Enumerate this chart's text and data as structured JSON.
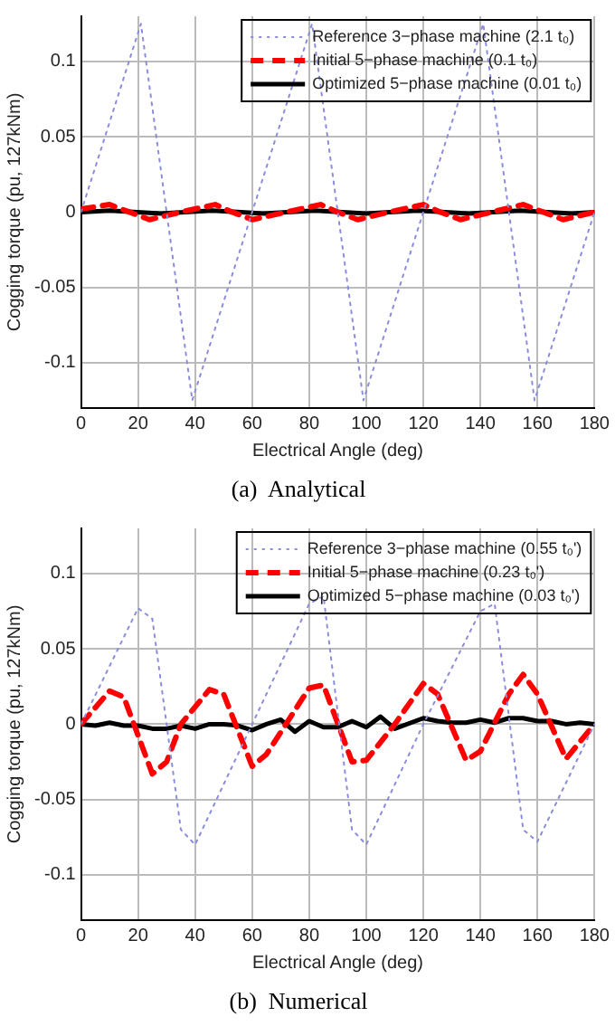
{
  "chart_data": [
    {
      "type": "line",
      "title": "(a)  Analytical",
      "xlabel": "Electrical Angle (deg)",
      "ylabel": "Cogging torque (pu, 127kNm)",
      "xlim": [
        0,
        180
      ],
      "xticks": [
        0,
        20,
        40,
        60,
        80,
        100,
        120,
        140,
        160,
        180
      ],
      "ylim": [
        -0.13,
        0.13
      ],
      "yticks": [
        -0.1,
        -0.05,
        0,
        0.05,
        0.1
      ],
      "grid": true,
      "legend": "top right",
      "marker": "none",
      "series": [
        {
          "name": "Reference 3−phase machine (2.1 t₀)",
          "color": "#8c8cdc",
          "line_style": "dotted",
          "x": [
            0,
            21,
            39,
            81,
            99,
            141,
            159,
            180
          ],
          "values": [
            0,
            0.125,
            -0.125,
            0.125,
            -0.125,
            0.125,
            -0.125,
            0
          ]
        },
        {
          "name": "Initial 5−phase machine (0.1 t₀)",
          "color": "#ff0000",
          "line_style": "dashed",
          "x": [
            0,
            10,
            17,
            24,
            35,
            47,
            53,
            60,
            72,
            84,
            90,
            97,
            108,
            120,
            126,
            133,
            144,
            155,
            162,
            169,
            180
          ],
          "values": [
            0.002,
            0.005,
            0,
            -0.005,
            0,
            0.005,
            0,
            -0.005,
            0,
            0.005,
            0,
            -0.005,
            0,
            0.005,
            0,
            -0.005,
            0,
            0.005,
            0,
            -0.005,
            0
          ]
        },
        {
          "name": "Optimized 5−phase machine (0.01 t₀)",
          "color": "#000000",
          "line_style": "solid",
          "x": [
            0,
            10,
            28,
            46,
            64,
            82,
            100,
            118,
            136,
            154,
            172,
            180
          ],
          "values": [
            0,
            0.001,
            -0.001,
            0.001,
            -0.001,
            0.001,
            -0.001,
            0.001,
            -0.001,
            0.001,
            -0.001,
            0
          ]
        }
      ]
    },
    {
      "type": "line",
      "title": "(b)  Numerical",
      "xlabel": "Electrical Angle (deg)",
      "ylabel": "Cogging torque (pu, 127kNm)",
      "xlim": [
        0,
        180
      ],
      "xticks": [
        0,
        20,
        40,
        60,
        80,
        100,
        120,
        140,
        160,
        180
      ],
      "ylim": [
        -0.13,
        0.13
      ],
      "yticks": [
        -0.1,
        -0.05,
        0,
        0.05,
        0.1
      ],
      "grid": true,
      "legend": "top right",
      "marker": "none",
      "series": [
        {
          "name": "Reference 3−phase machine (0.55 t₀')",
          "color": "#8c8cdc",
          "line_style": "dotted",
          "x": [
            0,
            20,
            25,
            35,
            40,
            60,
            80,
            85,
            95,
            100,
            120,
            140,
            145,
            155,
            160,
            180
          ],
          "values": [
            0,
            0.077,
            0.07,
            -0.07,
            -0.08,
            0,
            0.08,
            0.085,
            -0.07,
            -0.08,
            0,
            0.075,
            0.08,
            -0.07,
            -0.078,
            0
          ]
        },
        {
          "name": "Initial 5−phase machine (0.23 t₀')",
          "color": "#ff0000",
          "line_style": "dashed",
          "x": [
            0,
            10,
            15,
            25,
            30,
            35,
            45,
            50,
            60,
            65,
            80,
            85,
            95,
            100,
            110,
            120,
            125,
            135,
            140,
            150,
            155,
            160,
            170,
            180
          ],
          "values": [
            0,
            0.022,
            0.018,
            -0.033,
            -0.025,
            0,
            0.023,
            0.02,
            -0.028,
            -0.02,
            0.024,
            0.026,
            -0.025,
            -0.024,
            0,
            0.027,
            0.02,
            -0.024,
            -0.018,
            0.02,
            0.033,
            0.02,
            -0.023,
            0
          ]
        },
        {
          "name": "Optimized 5−phase machine (0.03 t₀')",
          "color": "#000000",
          "line_style": "solid",
          "x": [
            0,
            5,
            10,
            15,
            20,
            25,
            30,
            35,
            40,
            45,
            50,
            55,
            60,
            65,
            70,
            75,
            80,
            85,
            90,
            95,
            100,
            105,
            110,
            120,
            125,
            130,
            135,
            140,
            145,
            150,
            155,
            160,
            165,
            170,
            175,
            180
          ],
          "values": [
            0,
            -0.001,
            0.001,
            -0.001,
            -0.001,
            -0.003,
            -0.003,
            -0.001,
            -0.003,
            0,
            0,
            -0.001,
            -0.004,
            0,
            0.003,
            -0.005,
            0.002,
            -0.002,
            -0.002,
            0.002,
            -0.002,
            0.005,
            -0.003,
            0.004,
            0.002,
            0.001,
            0.001,
            0.003,
            0.001,
            0.004,
            0.004,
            0.002,
            0.002,
            0,
            0.001,
            0
          ]
        }
      ]
    }
  ]
}
